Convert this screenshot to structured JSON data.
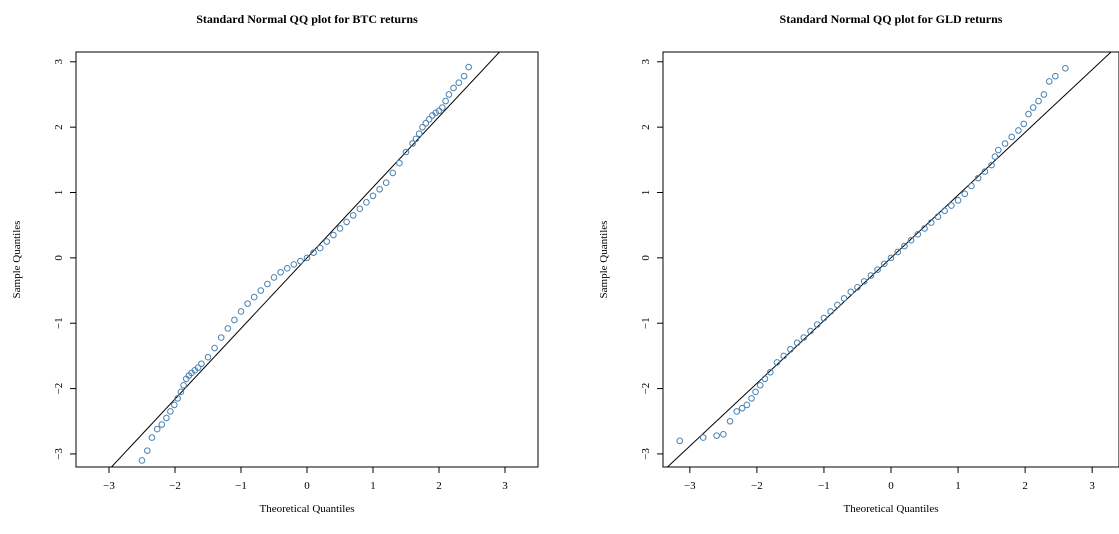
{
  "chart_data": [
    {
      "type": "scatter",
      "title": "Standard Normal QQ plot for BTC returns",
      "xlabel": "Theoretical Quantiles",
      "ylabel": "Sample Quantiles",
      "xlim": [
        -3.5,
        3.5
      ],
      "ylim": [
        -3.2,
        3.15
      ],
      "xticks": [
        -3,
        -2,
        -1,
        0,
        1,
        2,
        3
      ],
      "yticks": [
        -3,
        -2,
        -1,
        0,
        1,
        2,
        3
      ],
      "xtick_labels": [
        "−3",
        "−2",
        "−1",
        "0",
        "1",
        "2",
        "3"
      ],
      "ytick_labels": [
        "−3",
        "−2",
        "−1",
        "0",
        "1",
        "2",
        "3"
      ],
      "grid": false,
      "point_color": "#4682B4",
      "line_color": "#000000",
      "reference_line": {
        "intercept": 0.0,
        "slope": 1.08
      },
      "x": [
        -2.5,
        -2.42,
        -2.35,
        -2.27,
        -2.2,
        -2.13,
        -2.07,
        -2.01,
        -1.96,
        -1.91,
        -1.87,
        -1.83,
        -1.79,
        -1.75,
        -1.7,
        -1.65,
        -1.6,
        -1.5,
        -1.4,
        -1.3,
        -1.2,
        -1.1,
        -1.0,
        -0.9,
        -0.8,
        -0.7,
        -0.6,
        -0.5,
        -0.4,
        -0.3,
        -0.2,
        -0.1,
        0.0,
        0.1,
        0.2,
        0.3,
        0.4,
        0.5,
        0.6,
        0.7,
        0.8,
        0.9,
        1.0,
        1.1,
        1.2,
        1.3,
        1.4,
        1.5,
        1.6,
        1.65,
        1.7,
        1.75,
        1.8,
        1.85,
        1.9,
        1.95,
        2.0,
        2.05,
        2.1,
        2.15,
        2.22,
        2.3,
        2.38,
        2.45
      ],
      "y": [
        -3.1,
        -2.95,
        -2.75,
        -2.62,
        -2.55,
        -2.45,
        -2.35,
        -2.25,
        -2.15,
        -2.05,
        -1.95,
        -1.85,
        -1.8,
        -1.76,
        -1.72,
        -1.68,
        -1.62,
        -1.52,
        -1.38,
        -1.22,
        -1.08,
        -0.95,
        -0.82,
        -0.7,
        -0.6,
        -0.5,
        -0.4,
        -0.3,
        -0.22,
        -0.16,
        -0.1,
        -0.05,
        0.0,
        0.08,
        0.15,
        0.25,
        0.35,
        0.45,
        0.55,
        0.65,
        0.75,
        0.85,
        0.95,
        1.05,
        1.15,
        1.3,
        1.45,
        1.62,
        1.75,
        1.82,
        1.9,
        2.0,
        2.06,
        2.12,
        2.18,
        2.22,
        2.25,
        2.3,
        2.4,
        2.5,
        2.6,
        2.68,
        2.78,
        2.92
      ]
    },
    {
      "type": "scatter",
      "title": "Standard Normal QQ plot for GLD returns",
      "xlabel": "Theoretical Quantiles",
      "ylabel": "Sample Quantiles",
      "xlim": [
        -3.4,
        3.4
      ],
      "ylim": [
        -3.2,
        3.15
      ],
      "xticks": [
        -3,
        -2,
        -1,
        0,
        1,
        2,
        3
      ],
      "yticks": [
        -3,
        -2,
        -1,
        0,
        1,
        2,
        3
      ],
      "xtick_labels": [
        "−3",
        "−2",
        "−1",
        "0",
        "1",
        "2",
        "3"
      ],
      "ytick_labels": [
        "−3",
        "−2",
        "−1",
        "0",
        "1",
        "2",
        "3"
      ],
      "grid": false,
      "point_color": "#4682B4",
      "line_color": "#000000",
      "reference_line": {
        "intercept": 0.0,
        "slope": 0.96
      },
      "x": [
        -3.15,
        -2.8,
        -2.6,
        -2.5,
        -2.4,
        -2.3,
        -2.22,
        -2.15,
        -2.08,
        -2.02,
        -1.95,
        -1.88,
        -1.8,
        -1.7,
        -1.6,
        -1.5,
        -1.4,
        -1.3,
        -1.2,
        -1.1,
        -1.0,
        -0.9,
        -0.8,
        -0.7,
        -0.6,
        -0.5,
        -0.4,
        -0.3,
        -0.2,
        -0.1,
        0.0,
        0.1,
        0.2,
        0.3,
        0.4,
        0.5,
        0.6,
        0.7,
        0.8,
        0.9,
        1.0,
        1.1,
        1.2,
        1.3,
        1.4,
        1.5,
        1.55,
        1.6,
        1.7,
        1.8,
        1.9,
        1.98,
        2.05,
        2.12,
        2.2,
        2.28,
        2.36,
        2.45,
        2.6
      ],
      "y": [
        -2.8,
        -2.75,
        -2.72,
        -2.7,
        -2.5,
        -2.35,
        -2.3,
        -2.25,
        -2.15,
        -2.05,
        -1.95,
        -1.85,
        -1.75,
        -1.6,
        -1.5,
        -1.4,
        -1.3,
        -1.22,
        -1.12,
        -1.02,
        -0.92,
        -0.82,
        -0.72,
        -0.62,
        -0.52,
        -0.45,
        -0.36,
        -0.27,
        -0.18,
        -0.09,
        0.0,
        0.09,
        0.18,
        0.27,
        0.36,
        0.45,
        0.54,
        0.63,
        0.72,
        0.8,
        0.88,
        0.98,
        1.1,
        1.22,
        1.32,
        1.42,
        1.55,
        1.65,
        1.75,
        1.85,
        1.95,
        2.05,
        2.2,
        2.3,
        2.4,
        2.5,
        2.7,
        2.78,
        2.9
      ]
    }
  ]
}
